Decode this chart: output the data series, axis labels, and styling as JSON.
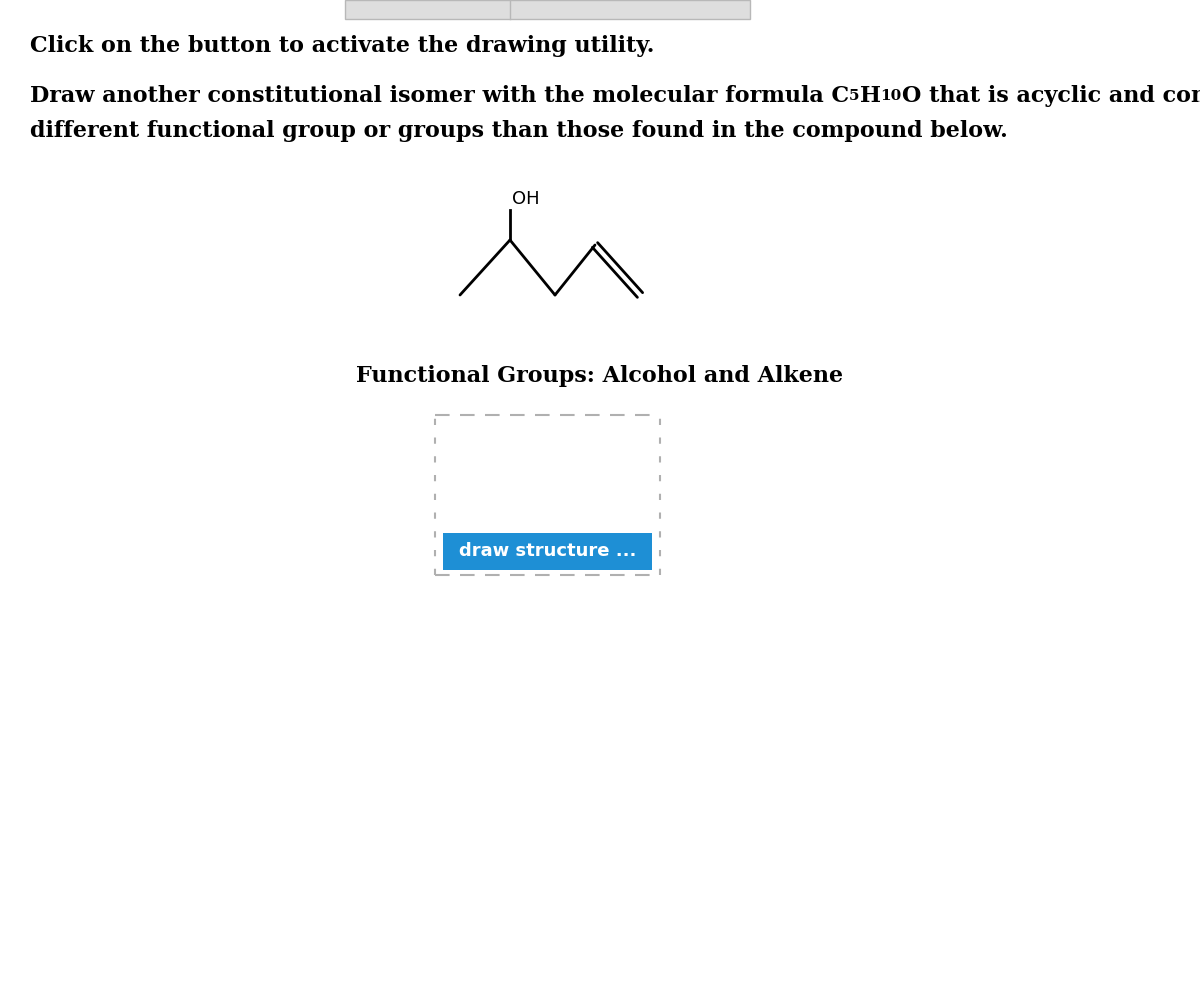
{
  "bg_color": "#ffffff",
  "text_color": "#000000",
  "line1": "Click on the button to activate the drawing utility.",
  "line2a": "Draw another constitutional isomer with the molecular formula C",
  "line2_sub1": "5",
  "line2b": "H",
  "line2_sub2": "10",
  "line2c": "O that is acyclic and contains a",
  "line3": "different functional group or groups than those found in the compound below.",
  "oh_label": "OH",
  "functional_groups_text": "Functional Groups: Alcohol and Alkene",
  "draw_button_text": "draw structure ...",
  "draw_button_color": "#1e8fd5",
  "draw_button_text_color": "#ffffff",
  "dashed_box_color": "#b0b0b0",
  "tab_bar_color": "#dedede",
  "tab_bar_border": "#b8b8b8",
  "font_size_main": 16,
  "font_size_sub": 11,
  "font_size_btn": 13
}
